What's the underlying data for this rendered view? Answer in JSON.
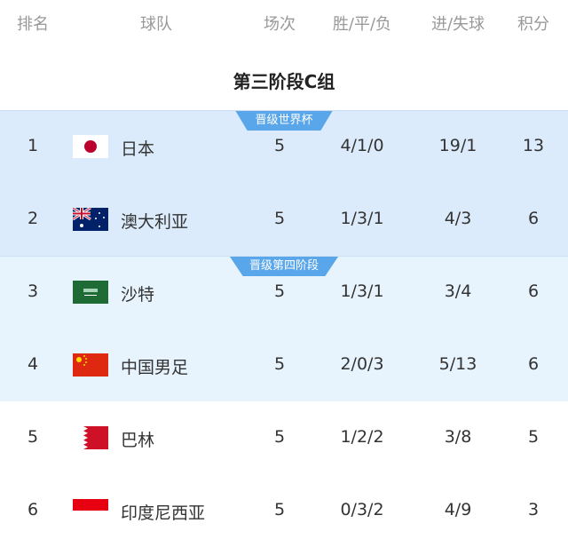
{
  "columns": [
    "排名",
    "球队",
    "场次",
    "胜/平/负",
    "进/失球",
    "积分"
  ],
  "title": "第三阶段C组",
  "zones": [
    {
      "label": "晋级世界杯",
      "color": "#dcebfb"
    },
    {
      "label": "晋级第四阶段",
      "color": "#e7f3fd"
    }
  ],
  "badge_color": "#5aa6ea",
  "rows": [
    {
      "rank": "1",
      "team": "日本",
      "flag": "japan-flag",
      "played": "5",
      "wdl": "4/1/0",
      "goals": "19/1",
      "points": "13"
    },
    {
      "rank": "2",
      "team": "澳大利亚",
      "flag": "australia-flag",
      "played": "5",
      "wdl": "1/3/1",
      "goals": "4/3",
      "points": "6"
    },
    {
      "rank": "3",
      "team": "沙特",
      "flag": "saudi-arabia-flag",
      "played": "5",
      "wdl": "1/3/1",
      "goals": "3/4",
      "points": "6"
    },
    {
      "rank": "4",
      "team": "中国男足",
      "flag": "china-flag",
      "played": "5",
      "wdl": "2/0/3",
      "goals": "5/13",
      "points": "6"
    },
    {
      "rank": "5",
      "team": "巴林",
      "flag": "bahrain-flag",
      "played": "5",
      "wdl": "1/2/2",
      "goals": "3/8",
      "points": "5"
    },
    {
      "rank": "6",
      "team": "印度尼西亚",
      "flag": "indonesia-flag",
      "played": "5",
      "wdl": "0/3/2",
      "goals": "4/9",
      "points": "3"
    }
  ]
}
